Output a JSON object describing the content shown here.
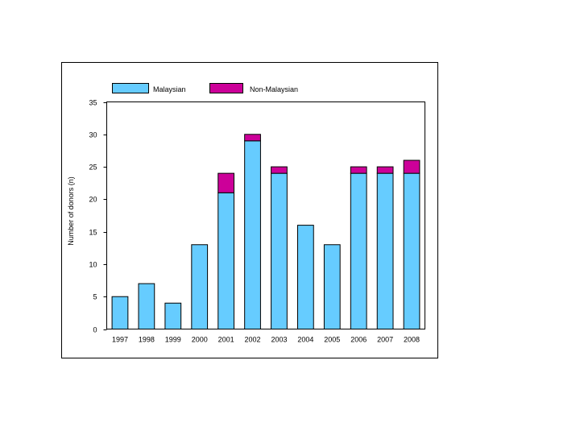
{
  "chart_data": {
    "type": "bar",
    "stacked": true,
    "title": "",
    "xlabel": "",
    "ylabel": "Number of donors (n)",
    "ylim": [
      0,
      35
    ],
    "yticks": [
      0,
      5,
      10,
      15,
      20,
      25,
      30,
      35
    ],
    "grid": false,
    "legend_position": "top",
    "categories": [
      "1997",
      "1998",
      "1999",
      "2000",
      "2001",
      "2002",
      "2003",
      "2004",
      "2005",
      "2006",
      "2007",
      "2008"
    ],
    "series": [
      {
        "name": "Malaysian",
        "color": "#66CCFF",
        "values": [
          5,
          7,
          4,
          13,
          21,
          29,
          24,
          16,
          13,
          24,
          24,
          24
        ]
      },
      {
        "name": "Non-Malaysian",
        "color": "#CC0099",
        "values": [
          0,
          0,
          0,
          0,
          3,
          1,
          1,
          0,
          0,
          1,
          1,
          2
        ]
      }
    ]
  }
}
